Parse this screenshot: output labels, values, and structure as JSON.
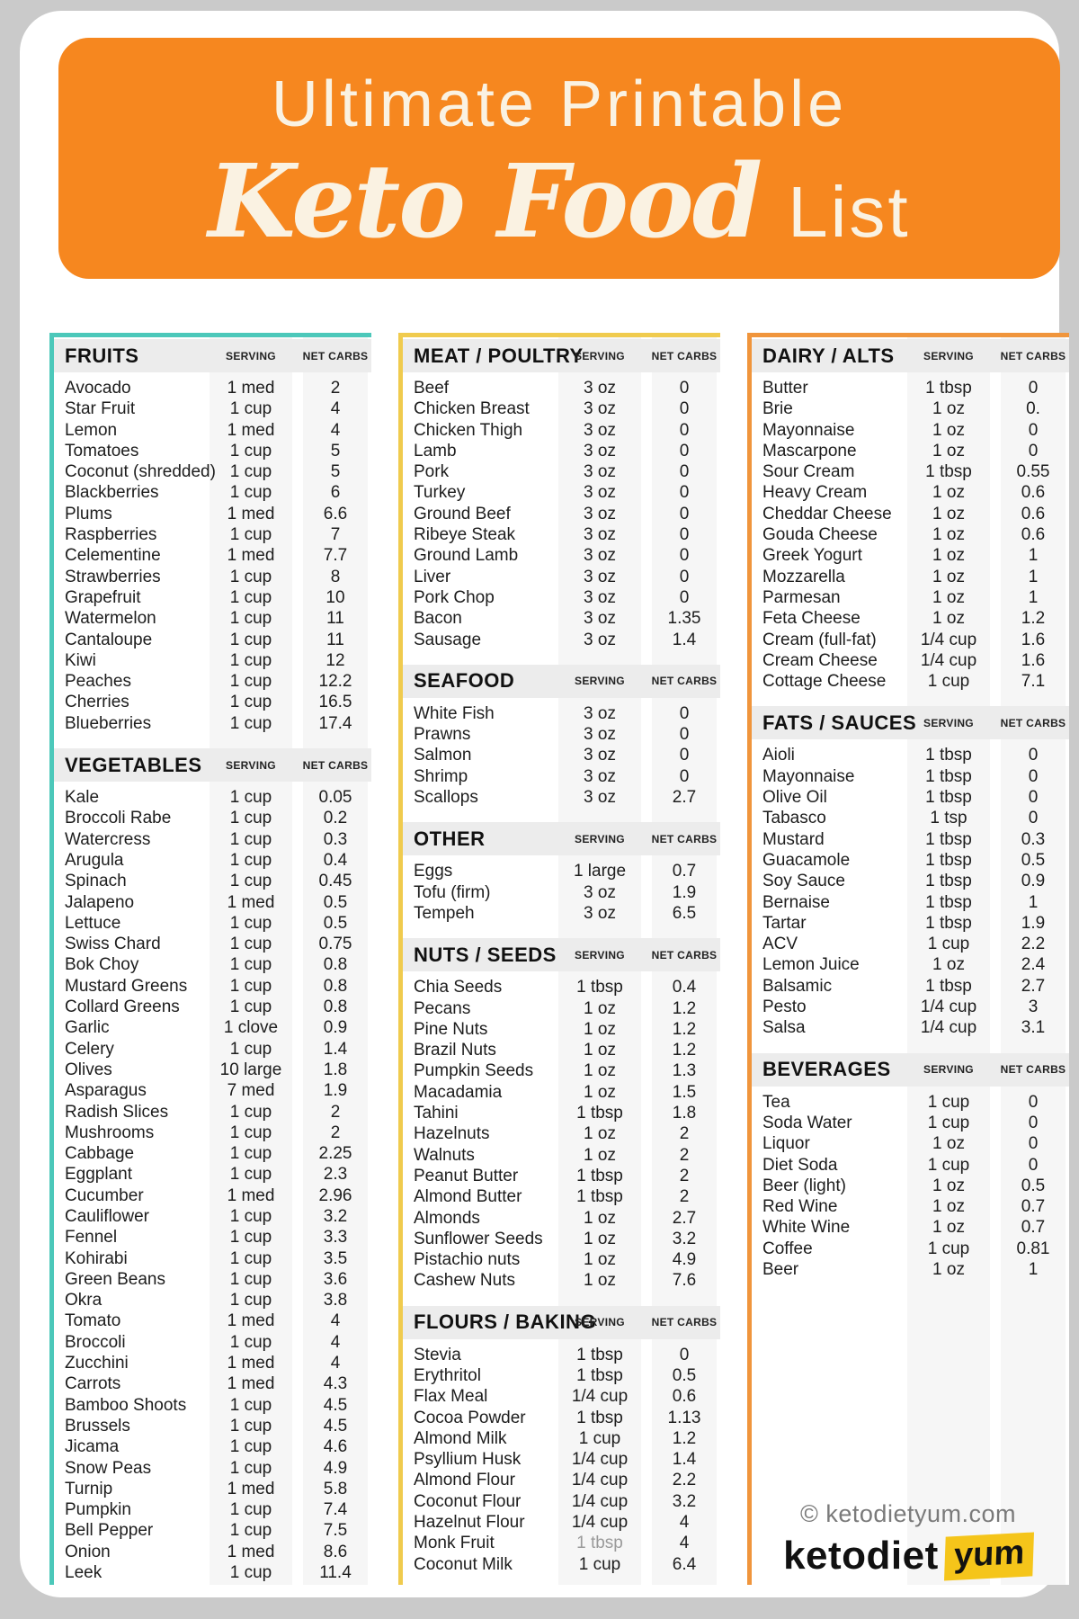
{
  "header": {
    "line1": "Ultimate Printable",
    "script": "Keto Food",
    "suffix": "List"
  },
  "labels": {
    "serving": "SERVING",
    "carbs": "NET CARBS"
  },
  "colors": {
    "page_bg": "#cacaca",
    "banner_orange": "#f6871f",
    "title_cream": "#faf2e2",
    "accent_teal": "#4cc8ba",
    "accent_yellow": "#f0cb4e",
    "accent_orange": "#f0953c",
    "band_gray": "#ececec",
    "stripe_gray": "#f6f6f6",
    "logo_yellow_bg": "#f5c51a"
  },
  "columns": [
    {
      "name": "left",
      "accent": "#4cc8ba",
      "sections": [
        {
          "title": "FRUITS",
          "rows": [
            [
              "Avocado",
              "1 med",
              "2"
            ],
            [
              "Star Fruit",
              "1 cup",
              "4"
            ],
            [
              "Lemon",
              "1 med",
              "4"
            ],
            [
              "Tomatoes",
              "1 cup",
              "5"
            ],
            [
              "Coconut (shredded)",
              "1 cup",
              "5"
            ],
            [
              "Blackberries",
              "1 cup",
              "6"
            ],
            [
              "Plums",
              "1 med",
              "6.6"
            ],
            [
              "Raspberries",
              "1 cup",
              "7"
            ],
            [
              "Celementine",
              "1 med",
              "7.7"
            ],
            [
              "Strawberries",
              "1 cup",
              "8"
            ],
            [
              "Grapefruit",
              "1 cup",
              "10"
            ],
            [
              "Watermelon",
              "1 cup",
              "11"
            ],
            [
              "Cantaloupe",
              "1 cup",
              "11"
            ],
            [
              "Kiwi",
              "1 cup",
              "12"
            ],
            [
              "Peaches",
              "1 cup",
              "12.2"
            ],
            [
              "Cherries",
              "1 cup",
              "16.5"
            ],
            [
              "Blueberries",
              "1 cup",
              "17.4"
            ]
          ]
        },
        {
          "title": "VEGETABLES",
          "rows": [
            [
              "Kale",
              "1 cup",
              "0.05"
            ],
            [
              "Broccoli Rabe",
              "1 cup",
              "0.2"
            ],
            [
              "Watercress",
              "1 cup",
              "0.3"
            ],
            [
              "Arugula",
              "1 cup",
              "0.4"
            ],
            [
              "Spinach",
              "1 cup",
              "0.45"
            ],
            [
              "Jalapeno",
              "1 med",
              "0.5"
            ],
            [
              "Lettuce",
              "1 cup",
              "0.5"
            ],
            [
              "Swiss Chard",
              "1 cup",
              "0.75"
            ],
            [
              "Bok Choy",
              "1 cup",
              "0.8"
            ],
            [
              "Mustard Greens",
              "1 cup",
              "0.8"
            ],
            [
              "Collard Greens",
              "1 cup",
              "0.8"
            ],
            [
              "Garlic",
              "1 clove",
              "0.9"
            ],
            [
              "Celery",
              "1 cup",
              "1.4"
            ],
            [
              "Olives",
              "10 large",
              "1.8"
            ],
            [
              "Asparagus",
              "7 med",
              "1.9"
            ],
            [
              "Radish Slices",
              "1 cup",
              "2"
            ],
            [
              "Mushrooms",
              "1 cup",
              "2"
            ],
            [
              "Cabbage",
              "1 cup",
              "2.25"
            ],
            [
              "Eggplant",
              "1 cup",
              "2.3"
            ],
            [
              "Cucumber",
              "1 med",
              "2.96"
            ],
            [
              "Cauliflower",
              "1 cup",
              "3.2"
            ],
            [
              "Fennel",
              "1 cup",
              "3.3"
            ],
            [
              "Kohirabi",
              "1 cup",
              "3.5"
            ],
            [
              "Green Beans",
              "1 cup",
              "3.6"
            ],
            [
              "Okra",
              "1 cup",
              "3.8"
            ],
            [
              "Tomato",
              "1 med",
              "4"
            ],
            [
              "Broccoli",
              "1 cup",
              "4"
            ],
            [
              "Zucchini",
              "1 med",
              "4"
            ],
            [
              "Carrots",
              "1 med",
              "4.3"
            ],
            [
              "Bamboo Shoots",
              "1 cup",
              "4.5"
            ],
            [
              "Brussels",
              "1 cup",
              "4.5"
            ],
            [
              "Jicama",
              "1 cup",
              "4.6"
            ],
            [
              "Snow Peas",
              "1 cup",
              "4.9"
            ],
            [
              "Turnip",
              "1 med",
              "5.8"
            ],
            [
              "Pumpkin",
              "1 cup",
              "7.4"
            ],
            [
              "Bell Pepper",
              "1 cup",
              "7.5"
            ],
            [
              "Onion",
              "1 med",
              "8.6"
            ],
            [
              "Leek",
              "1 cup",
              "11.4"
            ]
          ]
        }
      ]
    },
    {
      "name": "middle",
      "accent": "#f0cb4e",
      "sections": [
        {
          "title": "MEAT / POULTRY",
          "rows": [
            [
              "Beef",
              "3 oz",
              "0"
            ],
            [
              "Chicken Breast",
              "3 oz",
              "0"
            ],
            [
              "Chicken Thigh",
              "3 oz",
              "0"
            ],
            [
              "Lamb",
              "3 oz",
              "0"
            ],
            [
              "Pork",
              "3 oz",
              "0"
            ],
            [
              "Turkey",
              "3 oz",
              "0"
            ],
            [
              "Ground Beef",
              "3 oz",
              "0"
            ],
            [
              "Ribeye Steak",
              "3 oz",
              "0"
            ],
            [
              "Ground Lamb",
              "3 oz",
              "0"
            ],
            [
              "Liver",
              "3 oz",
              "0"
            ],
            [
              "Pork Chop",
              "3 oz",
              "0"
            ],
            [
              "Bacon",
              "3 oz",
              "1.35"
            ],
            [
              "Sausage",
              "3 oz",
              "1.4"
            ]
          ]
        },
        {
          "title": "SEAFOOD",
          "rows": [
            [
              "White Fish",
              "3 oz",
              "0"
            ],
            [
              "Prawns",
              "3 oz",
              "0"
            ],
            [
              "Salmon",
              "3 oz",
              "0"
            ],
            [
              "Shrimp",
              "3 oz",
              "0"
            ],
            [
              "Scallops",
              "3 oz",
              "2.7"
            ]
          ]
        },
        {
          "title": "OTHER",
          "rows": [
            [
              "Eggs",
              "1 large",
              "0.7"
            ],
            [
              "Tofu (firm)",
              "3 oz",
              "1.9"
            ],
            [
              "Tempeh",
              "3 oz",
              "6.5"
            ]
          ]
        },
        {
          "title": "NUTS / SEEDS",
          "rows": [
            [
              "Chia Seeds",
              "1 tbsp",
              "0.4"
            ],
            [
              "Pecans",
              "1 oz",
              "1.2"
            ],
            [
              "Pine Nuts",
              "1 oz",
              "1.2"
            ],
            [
              "Brazil Nuts",
              "1 oz",
              "1.2"
            ],
            [
              "Pumpkin Seeds",
              "1 oz",
              "1.3"
            ],
            [
              "Macadamia",
              "1 oz",
              "1.5"
            ],
            [
              "Tahini",
              "1 tbsp",
              "1.8"
            ],
            [
              "Hazelnuts",
              "1 oz",
              "2"
            ],
            [
              "Walnuts",
              "1 oz",
              "2"
            ],
            [
              "Peanut Butter",
              "1 tbsp",
              "2"
            ],
            [
              "Almond Butter",
              "1 tbsp",
              "2"
            ],
            [
              "Almonds",
              "1 oz",
              "2.7"
            ],
            [
              "Sunflower Seeds",
              "1 oz",
              "3.2"
            ],
            [
              "Pistachio nuts",
              "1 oz",
              "4.9"
            ],
            [
              "Cashew Nuts",
              "1 oz",
              "7.6"
            ]
          ]
        },
        {
          "title": "FLOURS / BAKING",
          "rows": [
            [
              "Stevia",
              "1 tbsp",
              "0"
            ],
            [
              "Erythritol",
              "1 tbsp",
              "0.5"
            ],
            [
              "Flax Meal",
              "1/4 cup",
              "0.6"
            ],
            [
              "Cocoa Powder",
              "1 tbsp",
              "1.13"
            ],
            [
              "Almond Milk",
              "1 cup",
              "1.2"
            ],
            [
              "Psyllium Husk",
              "1/4 cup",
              "1.4"
            ],
            [
              "Almond Flour",
              "1/4 cup",
              "2.2"
            ],
            [
              "Coconut Flour",
              "1/4 cup",
              "3.2"
            ],
            [
              "Hazelnut Flour",
              "1/4 cup",
              "4"
            ],
            [
              "Monk Fruit",
              "1 tbsp",
              "4",
              "muted"
            ],
            [
              "Coconut Milk",
              "1 cup",
              "6.4"
            ]
          ]
        }
      ]
    },
    {
      "name": "right",
      "accent": "#f0953c",
      "sections": [
        {
          "title": "DAIRY / ALTS",
          "rows": [
            [
              "Butter",
              "1 tbsp",
              "0"
            ],
            [
              "Brie",
              "1 oz",
              "0."
            ],
            [
              "Mayonnaise",
              "1 oz",
              "0"
            ],
            [
              "Mascarpone",
              "1 oz",
              "0"
            ],
            [
              "Sour Cream",
              "1 tbsp",
              "0.55"
            ],
            [
              "Heavy Cream",
              "1 oz",
              "0.6"
            ],
            [
              "Cheddar Cheese",
              "1 oz",
              "0.6"
            ],
            [
              "Gouda Cheese",
              "1 oz",
              "0.6"
            ],
            [
              "Greek Yogurt",
              "1 oz",
              "1"
            ],
            [
              "Mozzarella",
              "1 oz",
              "1"
            ],
            [
              "Parmesan",
              "1 oz",
              "1"
            ],
            [
              "Feta Cheese",
              "1 oz",
              "1.2"
            ],
            [
              "Cream (full-fat)",
              "1/4 cup",
              "1.6"
            ],
            [
              "Cream Cheese",
              "1/4 cup",
              "1.6"
            ],
            [
              "Cottage Cheese",
              "1 cup",
              "7.1"
            ]
          ]
        },
        {
          "title": "FATS / SAUCES",
          "rows": [
            [
              "Aioli",
              "1 tbsp",
              "0"
            ],
            [
              "Mayonnaise",
              "1 tbsp",
              "0"
            ],
            [
              "Olive Oil",
              "1 tbsp",
              "0"
            ],
            [
              "Tabasco",
              "1 tsp",
              "0"
            ],
            [
              "Mustard",
              "1 tbsp",
              "0.3"
            ],
            [
              "Guacamole",
              "1 tbsp",
              "0.5"
            ],
            [
              "Soy Sauce",
              "1 tbsp",
              "0.9"
            ],
            [
              "Bernaise",
              "1 tbsp",
              "1"
            ],
            [
              "Tartar",
              "1 tbsp",
              "1.9"
            ],
            [
              "ACV",
              "1 cup",
              "2.2"
            ],
            [
              "Lemon Juice",
              "1 oz",
              "2.4"
            ],
            [
              "Balsamic",
              "1 tbsp",
              "2.7"
            ],
            [
              "Pesto",
              "1/4 cup",
              "3"
            ],
            [
              "Salsa",
              "1/4 cup",
              "3.1"
            ]
          ]
        },
        {
          "title": "BEVERAGES",
          "rows": [
            [
              "Tea",
              "1 cup",
              "0"
            ],
            [
              "Soda Water",
              "1 cup",
              "0"
            ],
            [
              "Liquor",
              "1 oz",
              "0"
            ],
            [
              "Diet Soda",
              "1 cup",
              "0"
            ],
            [
              "Beer (light)",
              "1 oz",
              "0.5"
            ],
            [
              "Red Wine",
              "1 oz",
              "0.7"
            ],
            [
              "White Wine",
              "1 oz",
              "0.7"
            ],
            [
              "Coffee",
              "1 cup",
              "0.81"
            ],
            [
              "Beer",
              "1 oz",
              "1"
            ]
          ]
        }
      ]
    }
  ],
  "footer": {
    "copyright": "© ketodietyum.com",
    "logo_black": "ketodiet",
    "logo_yellow": "yum"
  }
}
